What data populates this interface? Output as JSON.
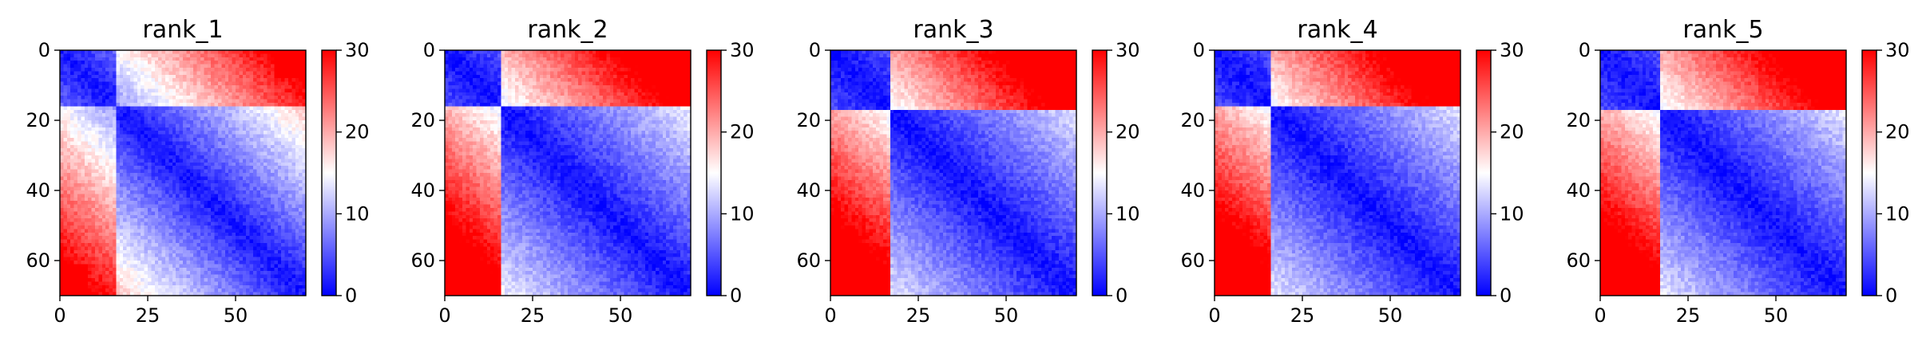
{
  "chart_data": [
    {
      "type": "heatmap",
      "title": "rank_1",
      "xlabel": "",
      "ylabel": "",
      "matrix_size": 70,
      "xlim": [
        0,
        70
      ],
      "ylim": [
        70,
        0
      ],
      "x_ticks": [
        0,
        25,
        50
      ],
      "y_ticks": [
        0,
        20,
        40,
        60
      ],
      "colorbar": {
        "range": [
          0,
          30
        ],
        "ticks": [
          0,
          10,
          20,
          30
        ],
        "colormap": "bwr",
        "colors": [
          "#0000ff",
          "#ffffff",
          "#ff0000"
        ]
      },
      "pattern": {
        "domain_boundary": 16,
        "domain_strength": 0.3
      }
    },
    {
      "type": "heatmap",
      "title": "rank_2",
      "xlabel": "",
      "ylabel": "",
      "matrix_size": 70,
      "xlim": [
        0,
        70
      ],
      "ylim": [
        70,
        0
      ],
      "x_ticks": [
        0,
        25,
        50
      ],
      "y_ticks": [
        0,
        20,
        40,
        60
      ],
      "colorbar": {
        "range": [
          0,
          30
        ],
        "ticks": [
          0,
          10,
          20,
          30
        ],
        "colormap": "bwr",
        "colors": [
          "#0000ff",
          "#ffffff",
          "#ff0000"
        ]
      },
      "pattern": {
        "domain_boundary": 16,
        "domain_strength": 0.8
      }
    },
    {
      "type": "heatmap",
      "title": "rank_3",
      "xlabel": "",
      "ylabel": "",
      "matrix_size": 70,
      "xlim": [
        0,
        70
      ],
      "ylim": [
        70,
        0
      ],
      "x_ticks": [
        0,
        25,
        50
      ],
      "y_ticks": [
        0,
        20,
        40,
        60
      ],
      "colorbar": {
        "range": [
          0,
          30
        ],
        "ticks": [
          0,
          10,
          20,
          30
        ],
        "colormap": "bwr",
        "colors": [
          "#0000ff",
          "#ffffff",
          "#ff0000"
        ]
      },
      "pattern": {
        "domain_boundary": 17,
        "domain_strength": 0.9
      }
    },
    {
      "type": "heatmap",
      "title": "rank_4",
      "xlabel": "",
      "ylabel": "",
      "matrix_size": 70,
      "xlim": [
        0,
        70
      ],
      "ylim": [
        70,
        0
      ],
      "x_ticks": [
        0,
        25,
        50
      ],
      "y_ticks": [
        0,
        20,
        40,
        60
      ],
      "colorbar": {
        "range": [
          0,
          30
        ],
        "ticks": [
          0,
          10,
          20,
          30
        ],
        "colormap": "bwr",
        "colors": [
          "#0000ff",
          "#ffffff",
          "#ff0000"
        ]
      },
      "pattern": {
        "domain_boundary": 16,
        "domain_strength": 0.9
      }
    },
    {
      "type": "heatmap",
      "title": "rank_5",
      "xlabel": "",
      "ylabel": "",
      "matrix_size": 70,
      "xlim": [
        0,
        70
      ],
      "ylim": [
        70,
        0
      ],
      "x_ticks": [
        0,
        25,
        50
      ],
      "y_ticks": [
        0,
        20,
        40,
        60
      ],
      "colorbar": {
        "range": [
          0,
          30
        ],
        "ticks": [
          0,
          10,
          20,
          30
        ],
        "colormap": "bwr",
        "colors": [
          "#0000ff",
          "#ffffff",
          "#ff0000"
        ]
      },
      "pattern": {
        "domain_boundary": 17,
        "domain_strength": 0.85
      }
    }
  ]
}
